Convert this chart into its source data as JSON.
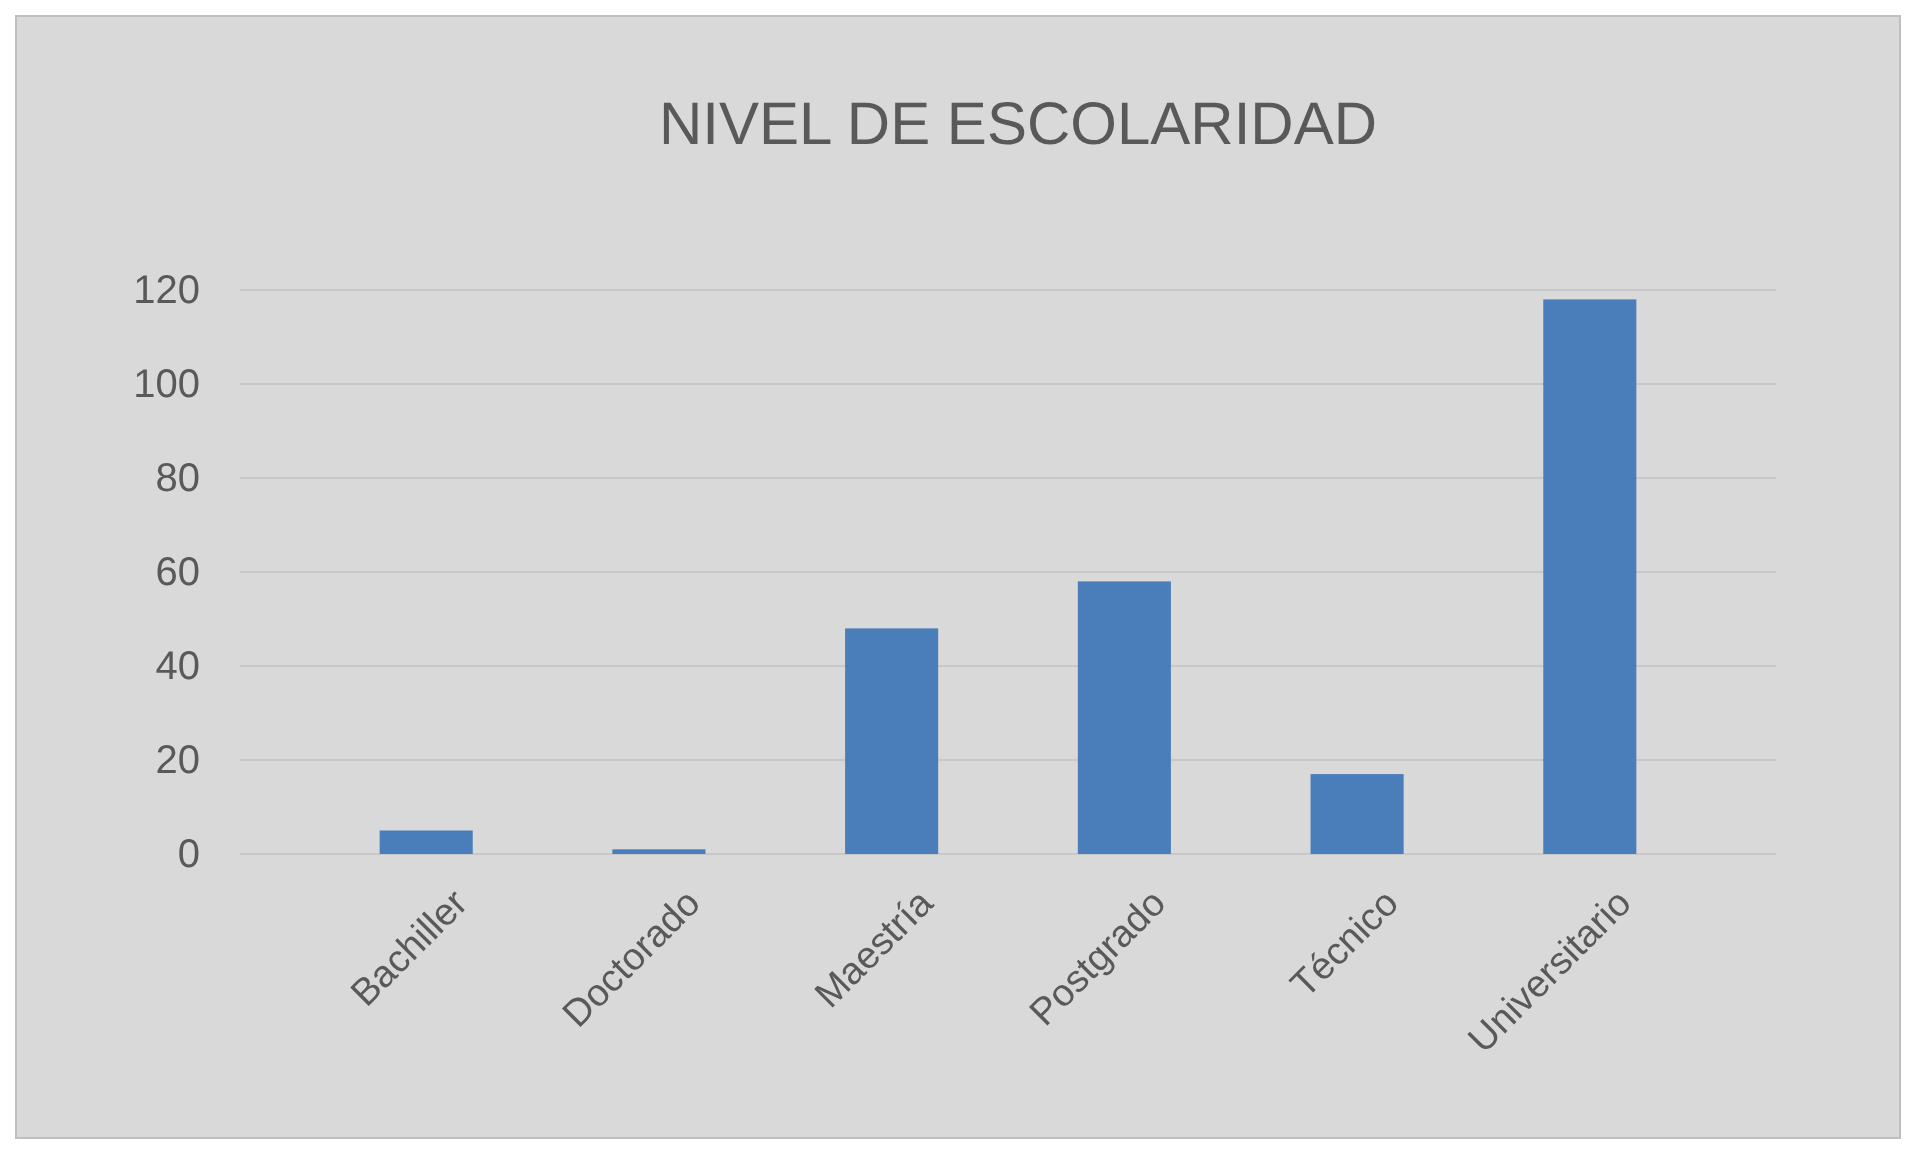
{
  "chart_data": {
    "type": "bar",
    "title": "NIVEL DE ESCOLARIDAD",
    "categories": [
      "Bachiller",
      "Doctorado",
      "Maestría",
      "Postgrado",
      "Técnico",
      "Universitario"
    ],
    "values": [
      5,
      1,
      48,
      58,
      17,
      118
    ],
    "color": "#4a7ebb",
    "ylim": [
      0,
      120
    ],
    "yticks": [
      0,
      20,
      40,
      60,
      80,
      100,
      120
    ],
    "grid": "y"
  }
}
